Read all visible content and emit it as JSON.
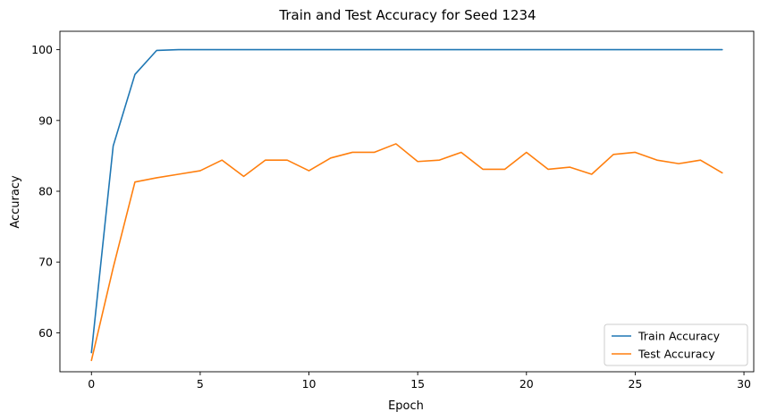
{
  "chart_data": {
    "type": "line",
    "title": "Train and Test Accuracy for Seed 1234",
    "xlabel": "Epoch",
    "ylabel": "Accuracy",
    "xlim": [
      -1.45,
      30.45
    ],
    "ylim": [
      54.5,
      102.6
    ],
    "x_ticks": [
      0,
      5,
      10,
      15,
      20,
      25,
      30
    ],
    "y_ticks": [
      60,
      70,
      80,
      90,
      100
    ],
    "grid": false,
    "legend_position": "lower-right",
    "x": [
      0,
      1,
      2,
      3,
      4,
      5,
      6,
      7,
      8,
      9,
      10,
      11,
      12,
      13,
      14,
      15,
      16,
      17,
      18,
      19,
      20,
      21,
      22,
      23,
      24,
      25,
      26,
      27,
      28,
      29
    ],
    "series": [
      {
        "name": "Train Accuracy",
        "color": "#1f77b4",
        "values": [
          57.2,
          86.4,
          96.5,
          99.9,
          100.0,
          100.0,
          100.0,
          100.0,
          100.0,
          100.0,
          100.0,
          100.0,
          100.0,
          100.0,
          100.0,
          100.0,
          100.0,
          100.0,
          100.0,
          100.0,
          100.0,
          100.0,
          100.0,
          100.0,
          100.0,
          100.0,
          100.0,
          100.0,
          100.0,
          100.0
        ]
      },
      {
        "name": "Test Accuracy",
        "color": "#ff7f0e",
        "values": [
          56.1,
          69.2,
          81.3,
          81.9,
          82.4,
          82.9,
          84.4,
          82.1,
          84.4,
          84.4,
          82.9,
          84.7,
          85.5,
          85.5,
          86.7,
          84.2,
          84.4,
          85.5,
          83.1,
          83.1,
          85.5,
          83.1,
          83.4,
          82.4,
          85.2,
          85.5,
          84.4,
          83.9,
          84.4,
          82.6
        ]
      }
    ]
  }
}
